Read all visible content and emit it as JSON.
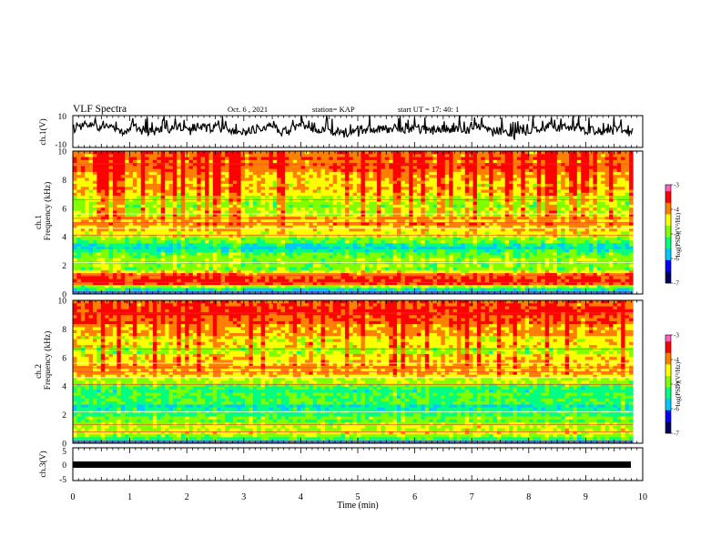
{
  "header": {
    "title": "VLF Spectra",
    "date": "Oct. 6 , 2021",
    "station": "station= KAP",
    "start": "start  UT =  17: 40: 1"
  },
  "chart_data": [
    {
      "type": "line",
      "name": "ch1-waveform",
      "ylabel": "ch.1(V)",
      "ylim": [
        -10,
        10
      ],
      "ytick_labels": [
        "10",
        "-10"
      ],
      "xlim": [
        0,
        10
      ]
    },
    {
      "type": "heatmap",
      "name": "ch1-spectrogram",
      "ylabel_line1": "ch.1",
      "ylabel_line2": "Frequency (kHz)",
      "ylim": [
        0,
        10
      ],
      "yticks": [
        "0",
        "2",
        "4",
        "6",
        "8",
        "10"
      ],
      "xlim": [
        0,
        9.83
      ],
      "colorbar": {
        "label": "log(PSD)(V²/Hz)",
        "range": [
          -7,
          -3
        ],
        "ticks": [
          "-3",
          "-4",
          "-5",
          "-6",
          "-7"
        ]
      },
      "band_profile": [
        {
          "f": 0.3,
          "level": -5.5
        },
        {
          "f": 0.8,
          "level": -3.4
        },
        {
          "f": 1.3,
          "level": -3.6
        },
        {
          "f": 1.8,
          "level": -4.8
        },
        {
          "f": 2.5,
          "level": -5.0
        },
        {
          "f": 3.2,
          "level": -5.6
        },
        {
          "f": 3.7,
          "level": -4.9
        },
        {
          "f": 4.3,
          "level": -4.3
        },
        {
          "f": 5.0,
          "level": -3.8
        },
        {
          "f": 5.7,
          "level": -4.6
        },
        {
          "f": 6.5,
          "level": -4.6
        },
        {
          "f": 7.5,
          "level": -4.0
        },
        {
          "f": 9.0,
          "level": -3.5
        }
      ]
    },
    {
      "type": "heatmap",
      "name": "ch2-spectrogram",
      "ylabel_line1": "ch.2",
      "ylabel_line2": "Frequency (kHz)",
      "ylim": [
        0,
        10
      ],
      "yticks": [
        "0",
        "2",
        "4",
        "6",
        "8",
        "10"
      ],
      "xlim": [
        0,
        9.83
      ],
      "colorbar": {
        "label": "log(PSD)(V²/Hz)",
        "range": [
          -7,
          -3
        ],
        "ticks": [
          "-3",
          "-4",
          "-5",
          "-6",
          "-7"
        ]
      },
      "band_profile": [
        {
          "f": 0.3,
          "level": -5.3
        },
        {
          "f": 0.8,
          "level": -4.4
        },
        {
          "f": 1.3,
          "level": -4.9
        },
        {
          "f": 1.8,
          "level": -5.1
        },
        {
          "f": 2.5,
          "level": -5.6
        },
        {
          "f": 3.2,
          "level": -5.0
        },
        {
          "f": 3.7,
          "level": -5.2
        },
        {
          "f": 4.3,
          "level": -4.8
        },
        {
          "f": 5.0,
          "level": -3.7
        },
        {
          "f": 5.7,
          "level": -4.2
        },
        {
          "f": 6.5,
          "level": -4.5
        },
        {
          "f": 7.5,
          "level": -4.0
        },
        {
          "f": 9.0,
          "level": -3.4
        }
      ]
    },
    {
      "type": "line",
      "name": "ch3-waveform",
      "ylabel": "ch.3(V)",
      "ylim": [
        -5,
        5
      ],
      "ytick_labels": [
        "5",
        "0",
        "-5"
      ],
      "xlim": [
        0,
        10
      ],
      "xlabel": "Time  (min)",
      "xticks": [
        "0",
        "1",
        "2",
        "3",
        "4",
        "5",
        "6",
        "7",
        "8",
        "9",
        "10"
      ]
    }
  ],
  "colors": {
    "ink": "#000000",
    "colormap": [
      "#000060",
      "#0000ff",
      "#00c8ff",
      "#00ff80",
      "#80ff00",
      "#ffff00",
      "#ff8000",
      "#ff0000",
      "#ff60c0",
      "#ffffff"
    ]
  }
}
